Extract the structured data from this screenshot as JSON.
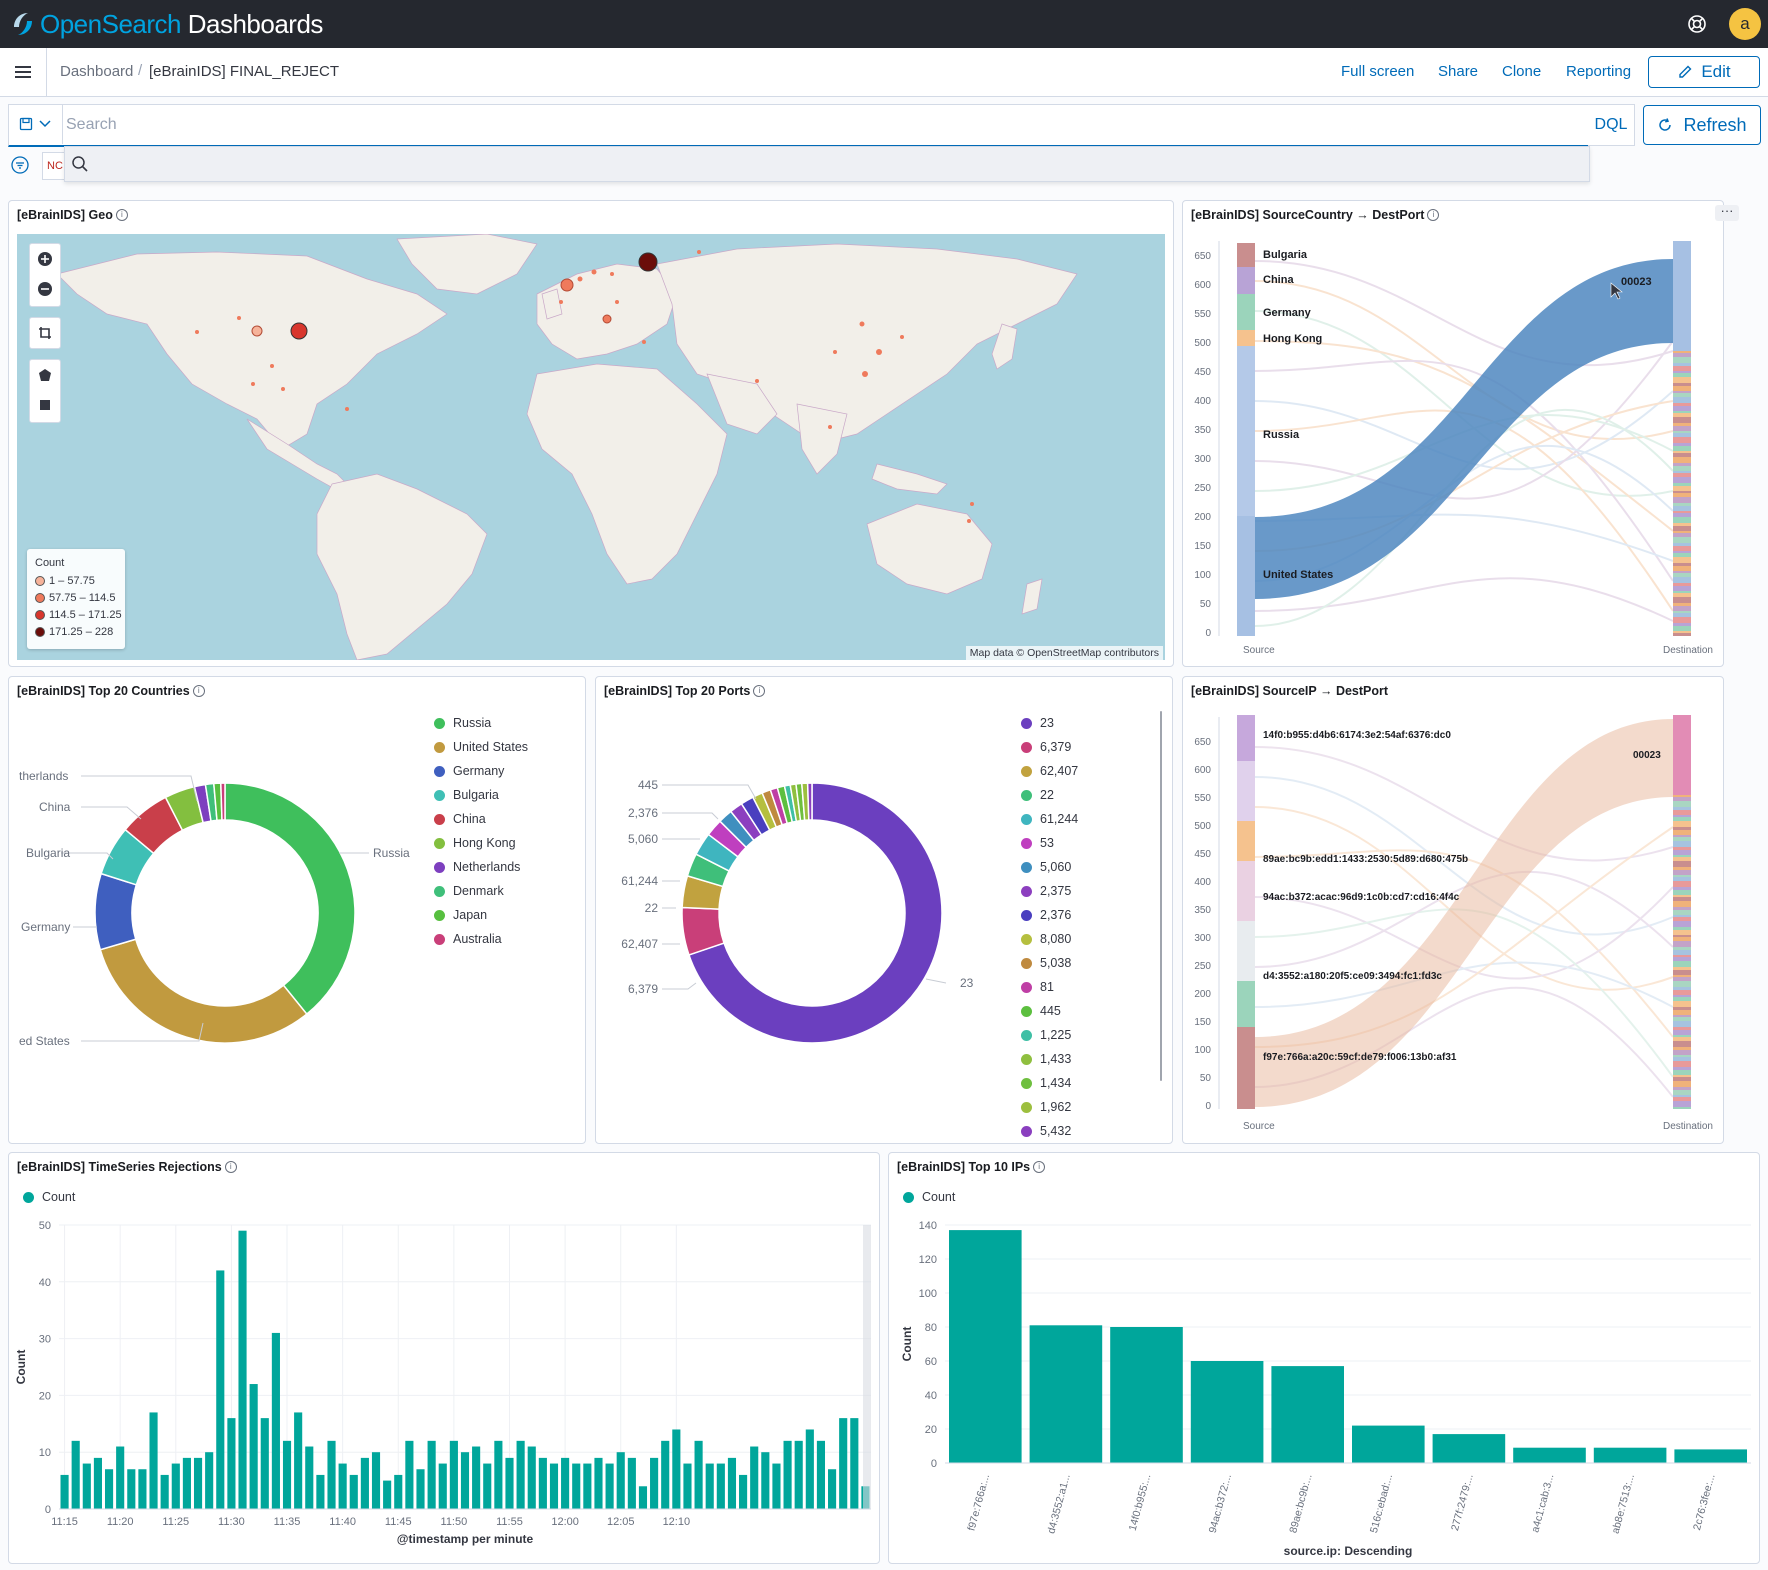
{
  "app": {
    "logo_light": "Open",
    "logo_bold": "Search",
    "logo_rest": " Dashboards",
    "avatar": "a"
  },
  "breadcrumb": {
    "root": "Dashboard",
    "current": "[eBrainIDS] FINAL_REJECT"
  },
  "top_actions": {
    "full_screen": "Full screen",
    "share": "Share",
    "clone": "Clone",
    "reporting": "Reporting",
    "edit": "Edit"
  },
  "search": {
    "placeholder": "Search",
    "dql": "DQL",
    "refresh": "Refresh",
    "filter_pill": "NC"
  },
  "panels": {
    "geo": {
      "title": "[eBrainIDS] Geo",
      "legend_title": "Count",
      "legend": [
        {
          "label": "1 – 57.75",
          "color": "#f6b39a"
        },
        {
          "label": "57.75 – 114.5",
          "color": "#ef7a5c"
        },
        {
          "label": "114.5 – 171.25",
          "color": "#d8362d"
        },
        {
          "label": "171.25 – 228",
          "color": "#6b0d0a"
        }
      ],
      "attribution": "Map data © OpenStreetMap contributors",
      "controls": [
        "zoom-in",
        "zoom-out",
        "fit-bounds",
        "draw-polygon",
        "draw-rectangle"
      ]
    },
    "sankey_country": {
      "title": "[eBrainIDS] SourceCountry → DestPort",
      "y_ticks": [
        "650",
        "600",
        "550",
        "500",
        "450",
        "400",
        "350",
        "300",
        "250",
        "200",
        "150",
        "100",
        "50",
        "0"
      ],
      "source_label": "Source",
      "dest_label": "Destination",
      "nodes": [
        "Bulgaria",
        "China",
        "Germany",
        "Hong Kong",
        "Russia",
        "United States"
      ],
      "dest_node": "00023"
    },
    "countries": {
      "title": "[eBrainIDS] Top 20 Countries",
      "legend": [
        {
          "label": "Russia",
          "color": "#3fbf5c"
        },
        {
          "label": "United States",
          "color": "#c19a3f"
        },
        {
          "label": "Germany",
          "color": "#3f5fbf"
        },
        {
          "label": "Bulgaria",
          "color": "#3fbfb5"
        },
        {
          "label": "China",
          "color": "#c93f4a"
        },
        {
          "label": "Hong Kong",
          "color": "#83bf3f"
        },
        {
          "label": "Netherlands",
          "color": "#7d3fbf"
        },
        {
          "label": "Denmark",
          "color": "#3fbf7a"
        },
        {
          "label": "Japan",
          "color": "#57bf3f"
        },
        {
          "label": "Australia",
          "color": "#c93f79"
        }
      ],
      "slice_labels": [
        "therlands",
        "China",
        "Bulgaria",
        "Germany",
        "ed States",
        "Russia"
      ]
    },
    "ports": {
      "title": "[eBrainIDS] Top 20 Ports",
      "legend": [
        {
          "label": "23",
          "color": "#6b3fbf"
        },
        {
          "label": "6,379",
          "color": "#c93f79"
        },
        {
          "label": "62,407",
          "color": "#c1a23f"
        },
        {
          "label": "22",
          "color": "#3fbf7a"
        },
        {
          "label": "61,244",
          "color": "#3fb5bf"
        },
        {
          "label": "53",
          "color": "#bf3fbf"
        },
        {
          "label": "5,060",
          "color": "#3f8fbf"
        },
        {
          "label": "2,375",
          "color": "#8c3fbf"
        },
        {
          "label": "2,376",
          "color": "#4a3fbf"
        },
        {
          "label": "8,080",
          "color": "#b5bf3f"
        },
        {
          "label": "5,038",
          "color": "#bf8a3f"
        },
        {
          "label": "81",
          "color": "#bf3fa5"
        },
        {
          "label": "445",
          "color": "#5cbf3f"
        },
        {
          "label": "1,225",
          "color": "#3fbfa5"
        },
        {
          "label": "1,433",
          "color": "#8fbf3f"
        },
        {
          "label": "1,434",
          "color": "#6fbf3f"
        },
        {
          "label": "1,962",
          "color": "#9dbf3f"
        },
        {
          "label": "5,432",
          "color": "#8a3fbf"
        }
      ],
      "slice_labels": [
        "445",
        "2,376",
        "5,060",
        "61,244",
        "22",
        "62,407",
        "6,379",
        "23"
      ]
    },
    "sankey_ip": {
      "title": "[eBrainIDS] SourceIP → DestPort",
      "y_ticks": [
        "650",
        "600",
        "550",
        "500",
        "450",
        "400",
        "350",
        "300",
        "250",
        "200",
        "150",
        "100",
        "50",
        "0"
      ],
      "source_label": "Source",
      "dest_label": "Destination",
      "nodes": [
        "14f0:b955:d4b6:6174:3e2:54af:6376:dc0",
        "89ae:bc9b:edd1:1433:2530:5d89:d680:475b",
        "94ac:b372:acac:96d9:1c0b:cd7:cd16:4f4c",
        "d4:3552:a180:20f5:ce09:3494:fc1:fd3c",
        "f97e:766a:a20c:59cf:de79:f006:13b0:af31"
      ],
      "dest_node": "00023"
    },
    "timeseries": {
      "title": "[eBrainIDS] TimeSeries Rejections",
      "legend": "Count"
    },
    "top_ips": {
      "title": "[eBrainIDS] Top 10 IPs",
      "legend": "Count"
    }
  },
  "chart_data": [
    {
      "type": "bar",
      "title": "[eBrainIDS] TimeSeries Rejections",
      "xlabel": "@timestamp per minute",
      "ylabel": "Count",
      "ylim": [
        0,
        50
      ],
      "y_ticks": [
        0,
        10,
        20,
        30,
        40,
        50
      ],
      "x_ticks": [
        "11:15",
        "11:20",
        "11:25",
        "11:30",
        "11:35",
        "11:40",
        "11:45",
        "11:50",
        "11:55",
        "12:00",
        "12:05",
        "12:10"
      ],
      "color": "#00a69b",
      "series": [
        {
          "name": "Count",
          "values": [
            6,
            12,
            8,
            9,
            7,
            11,
            7,
            7,
            17,
            6,
            8,
            9,
            9,
            10,
            42,
            16,
            49,
            22,
            16,
            31,
            12,
            17,
            11,
            6,
            12,
            8,
            6,
            9,
            10,
            5,
            6,
            12,
            7,
            12,
            8,
            12,
            10,
            11,
            8,
            12,
            9,
            12,
            11,
            9,
            8,
            9,
            8,
            8,
            9,
            8,
            10,
            9,
            4,
            9,
            12,
            14,
            8,
            12,
            8,
            8,
            9,
            6,
            11,
            10,
            8,
            12,
            12,
            14,
            12,
            7,
            16,
            16,
            4
          ]
        }
      ]
    },
    {
      "type": "bar",
      "title": "[eBrainIDS] Top 10 IPs",
      "xlabel": "source.ip: Descending",
      "ylabel": "Count",
      "ylim": [
        0,
        140
      ],
      "y_ticks": [
        0,
        20,
        40,
        60,
        80,
        100,
        120,
        140
      ],
      "color": "#00a69b",
      "categories": [
        "f97e:766a:...",
        "d4:3552:a1...",
        "14f0:b955:...",
        "94ac:b372:...",
        "89ae:bc9b:...",
        "516c:ebad:...",
        "277f:2479:...",
        "a4c1:cab:3...",
        "ab8e:7513:...",
        "2c76:3fee:..."
      ],
      "series": [
        {
          "name": "Count",
          "values": [
            137,
            81,
            80,
            60,
            57,
            22,
            17,
            9,
            9,
            8
          ]
        }
      ]
    },
    {
      "type": "pie",
      "title": "[eBrainIDS] Top 20 Countries",
      "categories": [
        "Russia",
        "United States",
        "Germany",
        "Bulgaria",
        "China",
        "Hong Kong",
        "Netherlands",
        "Denmark",
        "Japan",
        "Australia"
      ],
      "values": [
        228,
        182,
        55,
        36,
        37,
        22,
        8,
        6,
        5,
        3
      ]
    },
    {
      "type": "pie",
      "title": "[eBrainIDS] Top 20 Ports",
      "categories": [
        "23",
        "6,379",
        "62,407",
        "22",
        "61,244",
        "53",
        "5,060",
        "2,375",
        "2,376",
        "8,080",
        "5,038",
        "81",
        "445",
        "1,225",
        "1,433",
        "1,434",
        "1,962",
        "5,432"
      ],
      "values": [
        390,
        33,
        22,
        16,
        16,
        12,
        10,
        9,
        9,
        7,
        6,
        5,
        5,
        4,
        4,
        4,
        4,
        3
      ]
    }
  ]
}
